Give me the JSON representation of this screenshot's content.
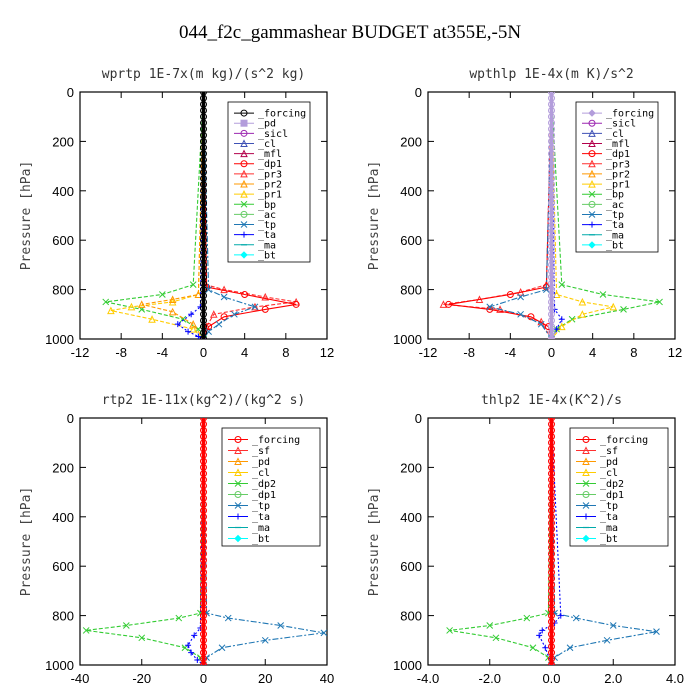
{
  "page": {
    "title": "044_f2c_gammashear  BUDGET at355E,-5N"
  },
  "chart_data": [
    {
      "type": "line",
      "title": "wprtp  1E-7x(m kg)/(s^2 kg)",
      "ylabel": "Pressure [hPa]",
      "ylim": [
        1000,
        0
      ],
      "xlim": [
        -12,
        12
      ],
      "xticks": [
        "-12",
        "-8",
        "-4",
        "0",
        "4",
        "8",
        "12"
      ],
      "yticks": [
        "0",
        "200",
        "400",
        "600",
        "800",
        "1000"
      ],
      "legend_position": "top-right",
      "legend": [
        {
          "name": "_forcing",
          "color": "#000000",
          "marker": "o"
        },
        {
          "name": "_pd",
          "color": "#b39ddb",
          "marker": "s"
        },
        {
          "name": "_sicl",
          "color": "#9c27b0",
          "marker": "o"
        },
        {
          "name": "_cl",
          "color": "#3f51b5",
          "marker": "tri"
        },
        {
          "name": "_mfl",
          "color": "#b3004b",
          "marker": "tri"
        },
        {
          "name": "_dp1",
          "color": "#ff0000",
          "marker": "o"
        },
        {
          "name": "_pr3",
          "color": "#ff3030",
          "marker": "tri"
        },
        {
          "name": "_pr2",
          "color": "#ff9900",
          "marker": "tri"
        },
        {
          "name": "_pr1",
          "color": "#ffcc00",
          "marker": "tri"
        },
        {
          "name": "_bp",
          "color": "#33cc33",
          "marker": "x"
        },
        {
          "name": "_ac",
          "color": "#66cc66",
          "marker": "o"
        },
        {
          "name": "_tp",
          "color": "#1f77b4",
          "marker": "x"
        },
        {
          "name": "_ta",
          "color": "#0000ff",
          "marker": "plus"
        },
        {
          "name": "_ma",
          "color": "#00aaaa",
          "marker": "dash"
        },
        {
          "name": "_bt",
          "color": "#00ffff",
          "marker": "diamond"
        }
      ],
      "series": [
        {
          "name": "_pr3",
          "color": "#ff3030",
          "dash": "4,2",
          "x": [
            0,
            0.2,
            2,
            6,
            9,
            5,
            1,
            0.3,
            0
          ],
          "y": [
            0,
            780,
            800,
            830,
            850,
            870,
            900,
            950,
            1000
          ]
        },
        {
          "name": "_dp1",
          "color": "#ff0000",
          "dash": "",
          "x": [
            0,
            0.3,
            4,
            9,
            6,
            2,
            0.5,
            0
          ],
          "y": [
            0,
            790,
            820,
            860,
            880,
            910,
            950,
            1000
          ]
        },
        {
          "name": "_tp",
          "color": "#1f77b4",
          "dash": "6,2,2,2",
          "x": [
            0,
            0.5,
            2,
            5,
            3,
            1.5,
            0.5,
            0
          ],
          "y": [
            0,
            800,
            830,
            870,
            900,
            940,
            970,
            1000
          ]
        },
        {
          "name": "_bp",
          "color": "#33cc33",
          "dash": "4,2",
          "x": [
            0,
            -1,
            -4,
            -9.5,
            -6,
            -2,
            -0.5,
            0
          ],
          "y": [
            0,
            780,
            820,
            850,
            880,
            920,
            960,
            1000
          ]
        },
        {
          "name": "_pr1",
          "color": "#ffcc00",
          "dash": "4,2",
          "x": [
            0,
            -0.5,
            -3,
            -7,
            -9,
            -5,
            -1,
            0
          ],
          "y": [
            0,
            820,
            850,
            870,
            885,
            920,
            960,
            1000
          ]
        },
        {
          "name": "_pr2",
          "color": "#ff9900",
          "dash": "4,2",
          "x": [
            0,
            -0.5,
            -3,
            -6,
            -3,
            -1,
            0
          ],
          "y": [
            0,
            820,
            840,
            860,
            890,
            940,
            1000
          ]
        },
        {
          "name": "_ta",
          "color": "#0000ff",
          "dash": "2,2",
          "x": [
            0,
            -0.3,
            -1.2,
            -2.5,
            -1.5,
            -0.5,
            0
          ],
          "y": [
            0,
            870,
            900,
            940,
            970,
            990,
            1000
          ]
        },
        {
          "name": "_forcing",
          "color": "#000000",
          "dash": "",
          "x": [
            0,
            0
          ],
          "y": [
            0,
            1000
          ]
        }
      ]
    },
    {
      "type": "line",
      "title": "wpthlp  1E-4x(m K)/s^2",
      "ylabel": "Pressure [hPa]",
      "ylim": [
        1000,
        0
      ],
      "xlim": [
        -12,
        12
      ],
      "xticks": [
        "-12",
        "-8",
        "-4",
        "0",
        "4",
        "8",
        "12"
      ],
      "yticks": [
        "0",
        "200",
        "400",
        "600",
        "800",
        "1000"
      ],
      "legend_position": "top-right",
      "legend": [
        {
          "name": "_forcing",
          "color": "#b39ddb",
          "marker": "diamond"
        },
        {
          "name": "_sicl",
          "color": "#9c27b0",
          "marker": "o"
        },
        {
          "name": "_cl",
          "color": "#3f51b5",
          "marker": "tri"
        },
        {
          "name": "_mfl",
          "color": "#b3004b",
          "marker": "tri"
        },
        {
          "name": "_dp1",
          "color": "#ff0000",
          "marker": "o"
        },
        {
          "name": "_pr3",
          "color": "#ff3030",
          "marker": "tri"
        },
        {
          "name": "_pr2",
          "color": "#ff9900",
          "marker": "tri"
        },
        {
          "name": "_pr1",
          "color": "#ffcc00",
          "marker": "tri"
        },
        {
          "name": "_bp",
          "color": "#33cc33",
          "marker": "x"
        },
        {
          "name": "_ac",
          "color": "#66cc66",
          "marker": "o"
        },
        {
          "name": "_tp",
          "color": "#1f77b4",
          "marker": "x"
        },
        {
          "name": "_ta",
          "color": "#0000ff",
          "marker": "plus"
        },
        {
          "name": "_ma",
          "color": "#00aaaa",
          "marker": "dash"
        },
        {
          "name": "_bt",
          "color": "#00ffff",
          "marker": "diamond"
        }
      ],
      "series": [
        {
          "name": "_bp",
          "color": "#33cc33",
          "dash": "4,2",
          "x": [
            0,
            1,
            5,
            10.5,
            7,
            2,
            0.5,
            0
          ],
          "y": [
            0,
            780,
            820,
            850,
            880,
            920,
            960,
            1000
          ]
        },
        {
          "name": "_pr1",
          "color": "#ffcc00",
          "dash": "4,2",
          "x": [
            0,
            0.5,
            3,
            6,
            3,
            1,
            0
          ],
          "y": [
            0,
            820,
            850,
            870,
            900,
            950,
            1000
          ]
        },
        {
          "name": "_pr3",
          "color": "#ff3030",
          "dash": "4,2",
          "x": [
            0,
            -0.5,
            -3,
            -7,
            -10.5,
            -5,
            -1,
            0
          ],
          "y": [
            0,
            780,
            810,
            840,
            860,
            880,
            930,
            1000
          ]
        },
        {
          "name": "_dp1",
          "color": "#ff0000",
          "dash": "",
          "x": [
            0,
            -0.5,
            -4,
            -10,
            -6,
            -2,
            -0.3,
            0
          ],
          "y": [
            0,
            790,
            820,
            860,
            880,
            910,
            950,
            1000
          ]
        },
        {
          "name": "_tp",
          "color": "#1f77b4",
          "dash": "6,2,2,2",
          "x": [
            0,
            -0.5,
            -3,
            -6,
            -3,
            -1,
            0
          ],
          "y": [
            0,
            800,
            830,
            870,
            900,
            940,
            1000
          ]
        },
        {
          "name": "_ta",
          "color": "#0000ff",
          "dash": "2,2",
          "x": [
            0,
            0.3,
            1,
            0.5,
            0
          ],
          "y": [
            0,
            880,
            920,
            960,
            1000
          ]
        },
        {
          "name": "_forcing",
          "color": "#b39ddb",
          "dash": "",
          "x": [
            0,
            0
          ],
          "y": [
            0,
            1000
          ]
        }
      ]
    },
    {
      "type": "line",
      "title": "rtp2  1E-11x(kg^2)/(kg^2 s)",
      "ylabel": "Pressure [hPa]",
      "ylim": [
        1000,
        0
      ],
      "xlim": [
        -40,
        40
      ],
      "xticks": [
        "-40",
        "-20",
        "0",
        "20",
        "40"
      ],
      "yticks": [
        "0",
        "200",
        "400",
        "600",
        "800",
        "1000"
      ],
      "legend_position": "top-right",
      "legend": [
        {
          "name": "_forcing",
          "color": "#ff0000",
          "marker": "o"
        },
        {
          "name": "_sf",
          "color": "#ff3030",
          "marker": "tri"
        },
        {
          "name": "_pd",
          "color": "#ff9900",
          "marker": "tri"
        },
        {
          "name": "_cl",
          "color": "#ffcc00",
          "marker": "tri"
        },
        {
          "name": "_dp2",
          "color": "#33cc33",
          "marker": "x"
        },
        {
          "name": "_dp1",
          "color": "#66cc66",
          "marker": "o"
        },
        {
          "name": "_tp",
          "color": "#1f77b4",
          "marker": "x"
        },
        {
          "name": "_ta",
          "color": "#0000ff",
          "marker": "plus"
        },
        {
          "name": "_ma",
          "color": "#00aaaa",
          "marker": "dash"
        },
        {
          "name": "_bt",
          "color": "#00ffff",
          "marker": "diamond"
        }
      ],
      "series": [
        {
          "name": "_dp2",
          "color": "#33cc33",
          "dash": "4,2",
          "x": [
            0,
            -1,
            -8,
            -25,
            -38,
            -20,
            -6,
            -1,
            0
          ],
          "y": [
            0,
            790,
            810,
            840,
            860,
            890,
            930,
            970,
            1000
          ]
        },
        {
          "name": "_tp",
          "color": "#1f77b4",
          "dash": "6,2,2,2",
          "x": [
            0,
            1,
            8,
            25,
            39,
            20,
            6,
            1,
            0
          ],
          "y": [
            0,
            790,
            810,
            840,
            870,
            900,
            930,
            970,
            1000
          ]
        },
        {
          "name": "_ta",
          "color": "#0000ff",
          "dash": "2,2",
          "x": [
            0,
            -1,
            -3,
            -5,
            -4,
            -2,
            0
          ],
          "y": [
            0,
            850,
            880,
            920,
            950,
            980,
            1000
          ]
        },
        {
          "name": "_forcing",
          "color": "#ff0000",
          "dash": "",
          "x": [
            0,
            0
          ],
          "y": [
            0,
            1000
          ]
        }
      ]
    },
    {
      "type": "line",
      "title": "thlp2  1E-4x(K^2)/s",
      "ylabel": "Pressure [hPa]",
      "ylim": [
        1000,
        0
      ],
      "xlim": [
        -4,
        4
      ],
      "xticks": [
        "-4.0",
        "-2.0",
        "0.0",
        "2.0",
        "4.0"
      ],
      "yticks": [
        "0",
        "200",
        "400",
        "600",
        "800",
        "1000"
      ],
      "legend_position": "top-right",
      "legend": [
        {
          "name": "_forcing",
          "color": "#ff0000",
          "marker": "o"
        },
        {
          "name": "_sf",
          "color": "#ff3030",
          "marker": "tri"
        },
        {
          "name": "_pd",
          "color": "#ff9900",
          "marker": "tri"
        },
        {
          "name": "_cl",
          "color": "#ffcc00",
          "marker": "tri"
        },
        {
          "name": "_dp2",
          "color": "#33cc33",
          "marker": "x"
        },
        {
          "name": "_dp1",
          "color": "#66cc66",
          "marker": "o"
        },
        {
          "name": "_tp",
          "color": "#1f77b4",
          "marker": "x"
        },
        {
          "name": "_ta",
          "color": "#0000ff",
          "marker": "plus"
        },
        {
          "name": "_ma",
          "color": "#00aaaa",
          "marker": "dash"
        },
        {
          "name": "_bt",
          "color": "#00ffff",
          "marker": "diamond"
        }
      ],
      "series": [
        {
          "name": "_dp2",
          "color": "#33cc33",
          "dash": "4,2",
          "x": [
            0,
            -0.1,
            -0.8,
            -2,
            -3.3,
            -1.8,
            -0.6,
            -0.1,
            0
          ],
          "y": [
            0,
            790,
            810,
            840,
            860,
            890,
            930,
            970,
            1000
          ]
        },
        {
          "name": "_tp",
          "color": "#1f77b4",
          "dash": "6,2,2,2",
          "x": [
            0,
            0.1,
            0.8,
            2,
            3.4,
            1.8,
            0.6,
            0.1,
            0
          ],
          "y": [
            0,
            790,
            810,
            840,
            865,
            900,
            930,
            970,
            1000
          ]
        },
        {
          "name": "_ta",
          "color": "#0000ff",
          "dash": "2,2",
          "x": [
            0,
            0.3,
            0.1,
            -0.3,
            -0.4,
            -0.2,
            0
          ],
          "y": [
            0,
            800,
            830,
            860,
            880,
            930,
            1000
          ]
        },
        {
          "name": "_forcing",
          "color": "#ff0000",
          "dash": "",
          "x": [
            0,
            0
          ],
          "y": [
            0,
            1000
          ]
        }
      ]
    }
  ]
}
